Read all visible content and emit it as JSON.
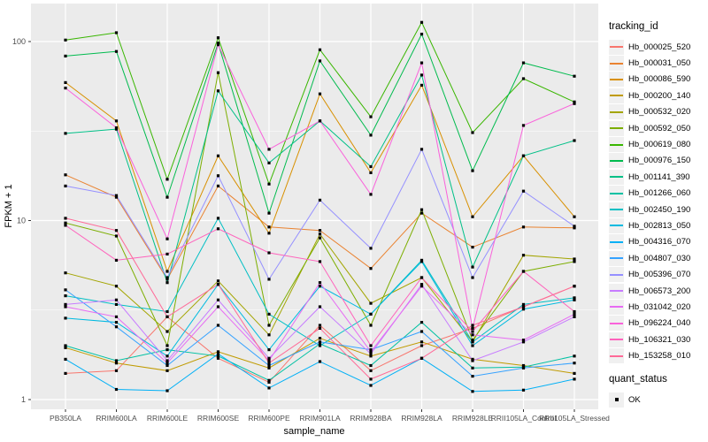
{
  "figure": {
    "y_axis": {
      "title": "FPKM + 1",
      "tick_labels": [
        "100",
        "10",
        "1"
      ],
      "tick_values": [
        100,
        10,
        1
      ]
    },
    "x_axis": {
      "title": "sample_name"
    },
    "legend": {
      "tracking_title": "tracking_id",
      "quant_title": "quant_status",
      "quant_items": [
        {
          "label": "OK"
        }
      ]
    },
    "style": {
      "panel_bg": "#EBEBEB",
      "grid_color": "#FFFFFF",
      "tick_text_color": "#4D4D4D",
      "axis_title_color": "#000000",
      "marker_color": "#000000",
      "legend_key_bg": "#F0F0F0"
    }
  },
  "chart_data": {
    "type": "line",
    "title": "",
    "xlabel": "sample_name",
    "ylabel": "FPKM + 1",
    "y_scale": "log10",
    "ylim": [
      0.93,
      160
    ],
    "y_ticks": [
      1,
      10,
      100
    ],
    "y_minor_ticks": [
      3.162,
      31.62
    ],
    "grid": true,
    "legend_position": "right",
    "marker": "black-square (quant_status = OK)",
    "x_categories": [
      "PB350LA",
      "RRIM600LA",
      "RRIM600LE",
      "RRIM600SE",
      "RRIM600PE",
      "RRIM901LA",
      "RRIM928BA",
      "RRIM928LA",
      "RRIM928LE",
      "RRII105LA_Control",
      "RRII105LA_Stressed"
    ],
    "series": [
      {
        "name": "Hb_000025_520",
        "color": "#F8766D",
        "values": [
          1.4,
          1.45,
          2.9,
          1.7,
          1.25,
          2.6,
          1.45,
          2.0,
          2.5,
          3.3,
          4.3
        ]
      },
      {
        "name": "Hb_000031_050",
        "color": "#EA8331",
        "values": [
          18,
          13.5,
          4.7,
          15.6,
          9.2,
          8.8,
          5.4,
          11,
          7.1,
          9.2,
          9.1
        ]
      },
      {
        "name": "Hb_000086_590",
        "color": "#D89000",
        "values": [
          59,
          36,
          5.2,
          23,
          8.5,
          51,
          18.5,
          57,
          10.5,
          23,
          10.5
        ]
      },
      {
        "name": "Hb_000200_140",
        "color": "#C09B00",
        "values": [
          1.95,
          1.6,
          1.45,
          1.85,
          1.5,
          2.2,
          1.75,
          2.1,
          1.68,
          1.55,
          1.4
        ]
      },
      {
        "name": "Hb_000532_020",
        "color": "#A3A500",
        "values": [
          5.1,
          4.3,
          2.4,
          4.6,
          2.3,
          8.4,
          3.45,
          4.8,
          2.1,
          6.4,
          6.1
        ]
      },
      {
        "name": "Hb_000592_050",
        "color": "#7CAE00",
        "values": [
          9.7,
          8.2,
          2.0,
          67,
          2.6,
          8.0,
          2.6,
          11.5,
          2.15,
          5.2,
          5.9
        ]
      },
      {
        "name": "Hb_000619_080",
        "color": "#39B600",
        "values": [
          102,
          112,
          17,
          105,
          16,
          90,
          38,
          128,
          31,
          62,
          46
        ]
      },
      {
        "name": "Hb_000976_150",
        "color": "#00BB4E",
        "values": [
          83,
          88,
          13.5,
          98,
          11,
          78,
          30,
          110,
          19,
          76,
          64
        ]
      },
      {
        "name": "Hb_001141_390",
        "color": "#00C087",
        "values": [
          30.7,
          32.4,
          4.5,
          53,
          21,
          36,
          20,
          65,
          5.5,
          23,
          28
        ]
      },
      {
        "name": "Hb_001266_060",
        "color": "#00C1A3",
        "values": [
          2.0,
          1.65,
          1.9,
          1.75,
          1.28,
          2.05,
          1.55,
          2.7,
          1.5,
          1.52,
          1.75
        ]
      },
      {
        "name": "Hb_002450_190",
        "color": "#00BFC4",
        "values": [
          3.8,
          3.4,
          3.1,
          10.3,
          3.0,
          2.0,
          3.0,
          6.0,
          2.1,
          3.4,
          3.7
        ]
      },
      {
        "name": "Hb_002813_050",
        "color": "#00BAE0",
        "values": [
          2.85,
          2.7,
          1.75,
          4.4,
          1.9,
          4.3,
          3.0,
          5.9,
          2.0,
          3.2,
          3.6
        ]
      },
      {
        "name": "Hb_004316_070",
        "color": "#00B0F6",
        "values": [
          1.68,
          1.14,
          1.12,
          1.8,
          1.16,
          1.63,
          1.2,
          1.7,
          1.11,
          1.13,
          1.3
        ]
      },
      {
        "name": "Hb_004807_030",
        "color": "#35A2FF",
        "values": [
          4.1,
          2.55,
          1.55,
          2.6,
          1.55,
          2.1,
          1.9,
          2.4,
          1.35,
          1.5,
          1.6
        ]
      },
      {
        "name": "Hb_005396_070",
        "color": "#9590FF",
        "values": [
          15.6,
          13.8,
          4.8,
          17.8,
          4.7,
          13,
          7.0,
          25,
          4.8,
          14.6,
          9.3
        ]
      },
      {
        "name": "Hb_006573_200",
        "color": "#C77CFF",
        "values": [
          3.4,
          3.6,
          1.65,
          3.6,
          1.7,
          3.3,
          1.8,
          4.4,
          1.65,
          2.1,
          2.9
        ]
      },
      {
        "name": "Hb_031042_020",
        "color": "#E76BF3",
        "values": [
          3.3,
          2.9,
          1.6,
          3.3,
          1.65,
          4.5,
          1.85,
          4.3,
          2.3,
          2.15,
          3.0
        ]
      },
      {
        "name": "Hb_096224_040",
        "color": "#FA62DB",
        "values": [
          55,
          33,
          7.9,
          96,
          25,
          36,
          14,
          76,
          2.5,
          34,
          45
        ]
      },
      {
        "name": "Hb_106321_030",
        "color": "#FF62BC",
        "values": [
          9.4,
          6.0,
          6.5,
          9.0,
          6.6,
          5.9,
          2.0,
          4.8,
          2.4,
          5.2,
          3.1
        ]
      },
      {
        "name": "Hb_153258_010",
        "color": "#FF6A98",
        "values": [
          10.3,
          8.8,
          2.9,
          4.4,
          1.6,
          2.5,
          1.3,
          1.7,
          2.6,
          3.3,
          4.3
        ]
      }
    ]
  }
}
